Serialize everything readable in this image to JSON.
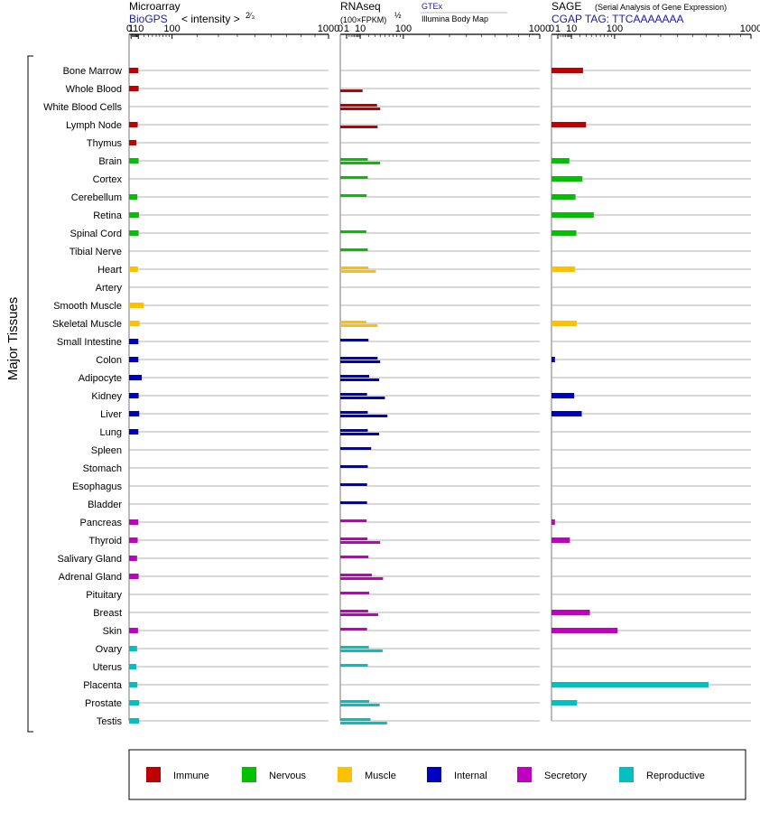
{
  "panels": {
    "microarray": {
      "title": "Microarray",
      "source": "BioGPS",
      "metric_prefix": "< intensity >",
      "metric_power": "2⁄₃"
    },
    "rnaseq": {
      "title": "RNAseq",
      "metric": "(100×FPKM)",
      "metric_power": "½",
      "source1": "GTEx",
      "source2": "Illumina Body Map"
    },
    "sage": {
      "title": "SAGE",
      "subtitle": "(Serial Analysis of Gene Expression)",
      "tag": "CGAP TAG: TTCAAAAAAA"
    }
  },
  "axis_title": "Major Tissues",
  "colors": {
    "Immune": "#c00000",
    "Nervous": "#00c000",
    "Muscle": "#ffc000",
    "Internal": "#0000c0",
    "Secretory": "#c000c0",
    "Reproductive": "#00c0c0"
  },
  "legend": [
    "Immune",
    "Nervous",
    "Muscle",
    "Internal",
    "Secretory",
    "Reproductive"
  ],
  "chart_data": [
    {
      "type": "bar",
      "panel": "Microarray",
      "orientation": "horizontal",
      "x_ticks": [
        "0",
        "1",
        "10",
        "100",
        "1000"
      ],
      "xlim": [
        0,
        1000
      ],
      "scale": "power 2/3",
      "categories": [
        "Bone Marrow",
        "Whole Blood",
        "White Blood Cells",
        "Lymph Node",
        "Thymus",
        "Brain",
        "Cortex",
        "Cerebellum",
        "Retina",
        "Spinal Cord",
        "Tibial Nerve",
        "Heart",
        "Artery",
        "Smooth Muscle",
        "Skeletal Muscle",
        "Small Intestine",
        "Colon",
        "Adipocyte",
        "Kidney",
        "Liver",
        "Lung",
        "Spleen",
        "Stomach",
        "Esophagus",
        "Bladder",
        "Pancreas",
        "Thyroid",
        "Salivary Gland",
        "Adrenal Gland",
        "Pituitary",
        "Breast",
        "Skin",
        "Ovary",
        "Uterus",
        "Placenta",
        "Prostate",
        "Testis"
      ],
      "groups": [
        "Immune",
        "Immune",
        "Immune",
        "Immune",
        "Immune",
        "Nervous",
        "Nervous",
        "Nervous",
        "Nervous",
        "Nervous",
        "Nervous",
        "Muscle",
        "Muscle",
        "Muscle",
        "Muscle",
        "Internal",
        "Internal",
        "Internal",
        "Internal",
        "Internal",
        "Internal",
        "Internal",
        "Internal",
        "Internal",
        "Internal",
        "Secretory",
        "Secretory",
        "Secretory",
        "Secretory",
        "Secretory",
        "Secretory",
        "Secretory",
        "Reproductive",
        "Reproductive",
        "Reproductive",
        "Reproductive",
        "Reproductive"
      ],
      "values": [
        10,
        10.5,
        null,
        9,
        7,
        10.5,
        null,
        8.5,
        11,
        10.5,
        null,
        9.5,
        null,
        20,
        12,
        10,
        10,
        16,
        10.5,
        11.5,
        10,
        null,
        null,
        null,
        null,
        10,
        9,
        8,
        10.5,
        null,
        null,
        9.5,
        8,
        7,
        8.5,
        11.5,
        11.5
      ]
    },
    {
      "type": "bar",
      "panel": "RNAseq",
      "orientation": "horizontal",
      "x_ticks": [
        "0",
        "1",
        "10",
        "100",
        "1000"
      ],
      "xlim": [
        0,
        1000
      ],
      "scale": "power 1/2",
      "series": [
        {
          "name": "GTEx",
          "values": [
            null,
            null,
            34,
            null,
            null,
            19,
            19,
            17.5,
            null,
            17,
            19,
            20,
            null,
            null,
            17,
            20,
            35,
            21,
            18,
            19,
            19,
            24,
            19,
            18,
            18,
            17.5,
            18.5,
            20,
            25,
            21,
            19.5,
            18,
            20.5,
            19,
            null,
            21,
            23
          ]
        },
        {
          "name": "Illumina Body Map",
          "values": [
            null,
            12.5,
            40,
            35,
            null,
            40,
            null,
            null,
            null,
            null,
            null,
            32,
            null,
            null,
            35,
            null,
            40,
            38,
            50,
            56,
            38,
            null,
            null,
            null,
            null,
            null,
            40,
            null,
            46,
            null,
            36,
            null,
            45,
            null,
            null,
            39,
            55
          ]
        }
      ],
      "categories_ref": "same as Microarray"
    },
    {
      "type": "bar",
      "panel": "SAGE",
      "orientation": "horizontal",
      "x_ticks": [
        "0",
        "1",
        "10",
        "100",
        "1000"
      ],
      "xlim": [
        0,
        1000
      ],
      "scale": "power 1/2",
      "values": [
        25,
        null,
        null,
        30,
        null,
        8,
        24,
        14.5,
        45,
        15.5,
        null,
        14,
        null,
        null,
        16,
        null,
        0.3,
        null,
        13,
        23,
        null,
        null,
        null,
        null,
        null,
        0.3,
        8.5,
        null,
        null,
        null,
        37,
        110,
        null,
        null,
        620,
        16.5,
        null
      ]
    }
  ]
}
